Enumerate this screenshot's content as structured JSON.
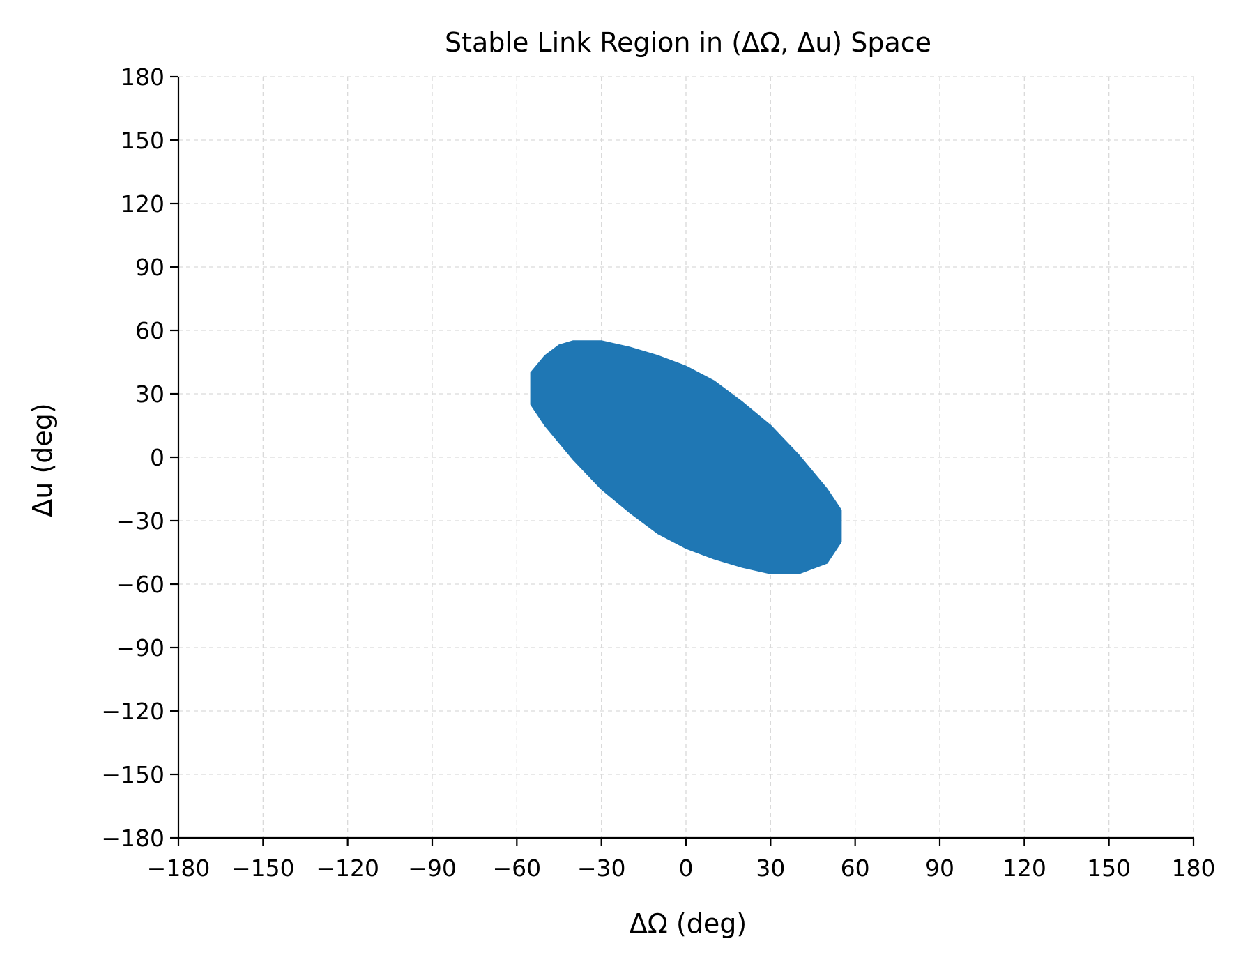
{
  "chart_data": {
    "type": "area",
    "title": "Stable Link Region in (ΔΩ, Δu) Space",
    "xlabel": "ΔΩ (deg)",
    "ylabel": "Δu (deg)",
    "xlim": [
      -180,
      180
    ],
    "ylim": [
      -180,
      180
    ],
    "x_ticks": [
      -180,
      -150,
      -120,
      -90,
      -60,
      -30,
      0,
      30,
      60,
      90,
      120,
      150,
      180
    ],
    "y_ticks": [
      -180,
      -150,
      -120,
      -90,
      -60,
      -30,
      0,
      30,
      60,
      90,
      120,
      150,
      180
    ],
    "x_tick_labels": [
      "−180",
      "−150",
      "−120",
      "−90",
      "−60",
      "−30",
      "0",
      "30",
      "60",
      "90",
      "120",
      "150",
      "180"
    ],
    "y_tick_labels": [
      "−180",
      "−150",
      "−120",
      "−90",
      "−60",
      "−30",
      "0",
      "30",
      "60",
      "90",
      "120",
      "150",
      "180"
    ],
    "grid": true,
    "fill_color": "#1f77b4",
    "region_boundary": [
      [
        -55,
        40
      ],
      [
        -50,
        48
      ],
      [
        -45,
        53
      ],
      [
        -40,
        55
      ],
      [
        -30,
        55
      ],
      [
        -20,
        52
      ],
      [
        -10,
        48
      ],
      [
        0,
        43
      ],
      [
        10,
        36
      ],
      [
        20,
        26
      ],
      [
        30,
        15
      ],
      [
        40,
        1
      ],
      [
        50,
        -15
      ],
      [
        55,
        -25
      ],
      [
        55,
        -40
      ],
      [
        50,
        -50
      ],
      [
        40,
        -55
      ],
      [
        30,
        -55
      ],
      [
        20,
        -52
      ],
      [
        10,
        -48
      ],
      [
        0,
        -43
      ],
      [
        -10,
        -36
      ],
      [
        -20,
        -26
      ],
      [
        -30,
        -15
      ],
      [
        -40,
        -1
      ],
      [
        -50,
        15
      ],
      [
        -55,
        25
      ]
    ]
  }
}
